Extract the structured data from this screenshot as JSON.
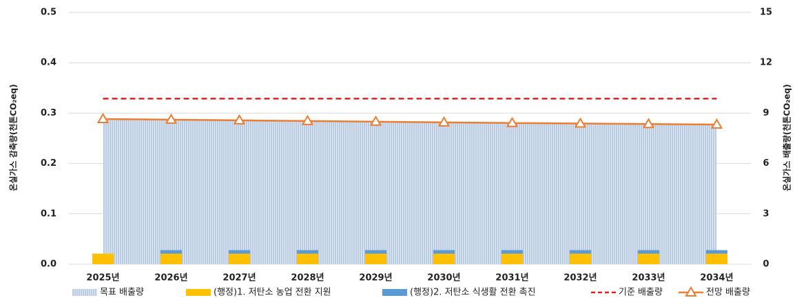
{
  "chart_data": {
    "type": "combo",
    "categories": [
      "2025년",
      "2026년",
      "2027년",
      "2028년",
      "2029년",
      "2030년",
      "2031년",
      "2032년",
      "2033년",
      "2034년"
    ],
    "y_label": "온실가스 감축량(천톤CO₂eq)",
    "y2_label": "온실가스 배출량(천톤CO₂eq)",
    "ylim": [
      0,
      0.5
    ],
    "yticks": [
      {
        "value": 0,
        "label": "0.0"
      },
      0.1,
      0.2,
      0.3,
      0.4,
      0.5
    ],
    "y2lim": [
      0,
      15
    ],
    "y2ticks": [
      0,
      3,
      6,
      9,
      12,
      15
    ],
    "grid": true,
    "legend": "bottom",
    "series": [
      {
        "name": "목표 배출량",
        "kind": "area",
        "axis": "y2",
        "color": "#9db9dd",
        "values": [
          8.6,
          8.57,
          8.54,
          8.5,
          8.47,
          8.44,
          8.41,
          8.38,
          8.35,
          8.32
        ]
      },
      {
        "name": "(행정)1. 저탄소 농업 전환 지원",
        "kind": "bar",
        "color": "#ffc000",
        "values": [
          0.021,
          0.021,
          0.021,
          0.021,
          0.021,
          0.021,
          0.021,
          0.021,
          0.021,
          0.021
        ]
      },
      {
        "name": "(행정)2. 저탄소 식생활 전환 촉진",
        "kind": "bar",
        "color": "#5b9bd5",
        "values": [
          0,
          0.007,
          0.007,
          0.007,
          0.007,
          0.007,
          0.007,
          0.007,
          0.007,
          0.007
        ]
      },
      {
        "name": "기준 배출량",
        "kind": "dashed",
        "axis": "y2",
        "color": "#e02020",
        "values": [
          9.86,
          9.86,
          9.86,
          9.86,
          9.86,
          9.86,
          9.86,
          9.86,
          9.86,
          9.86
        ]
      },
      {
        "name": "전망 배출량",
        "kind": "line",
        "axis": "y2",
        "color": "#ed7d31",
        "values": [
          8.65,
          8.61,
          8.57,
          8.53,
          8.49,
          8.45,
          8.41,
          8.38,
          8.35,
          8.32
        ]
      }
    ]
  }
}
